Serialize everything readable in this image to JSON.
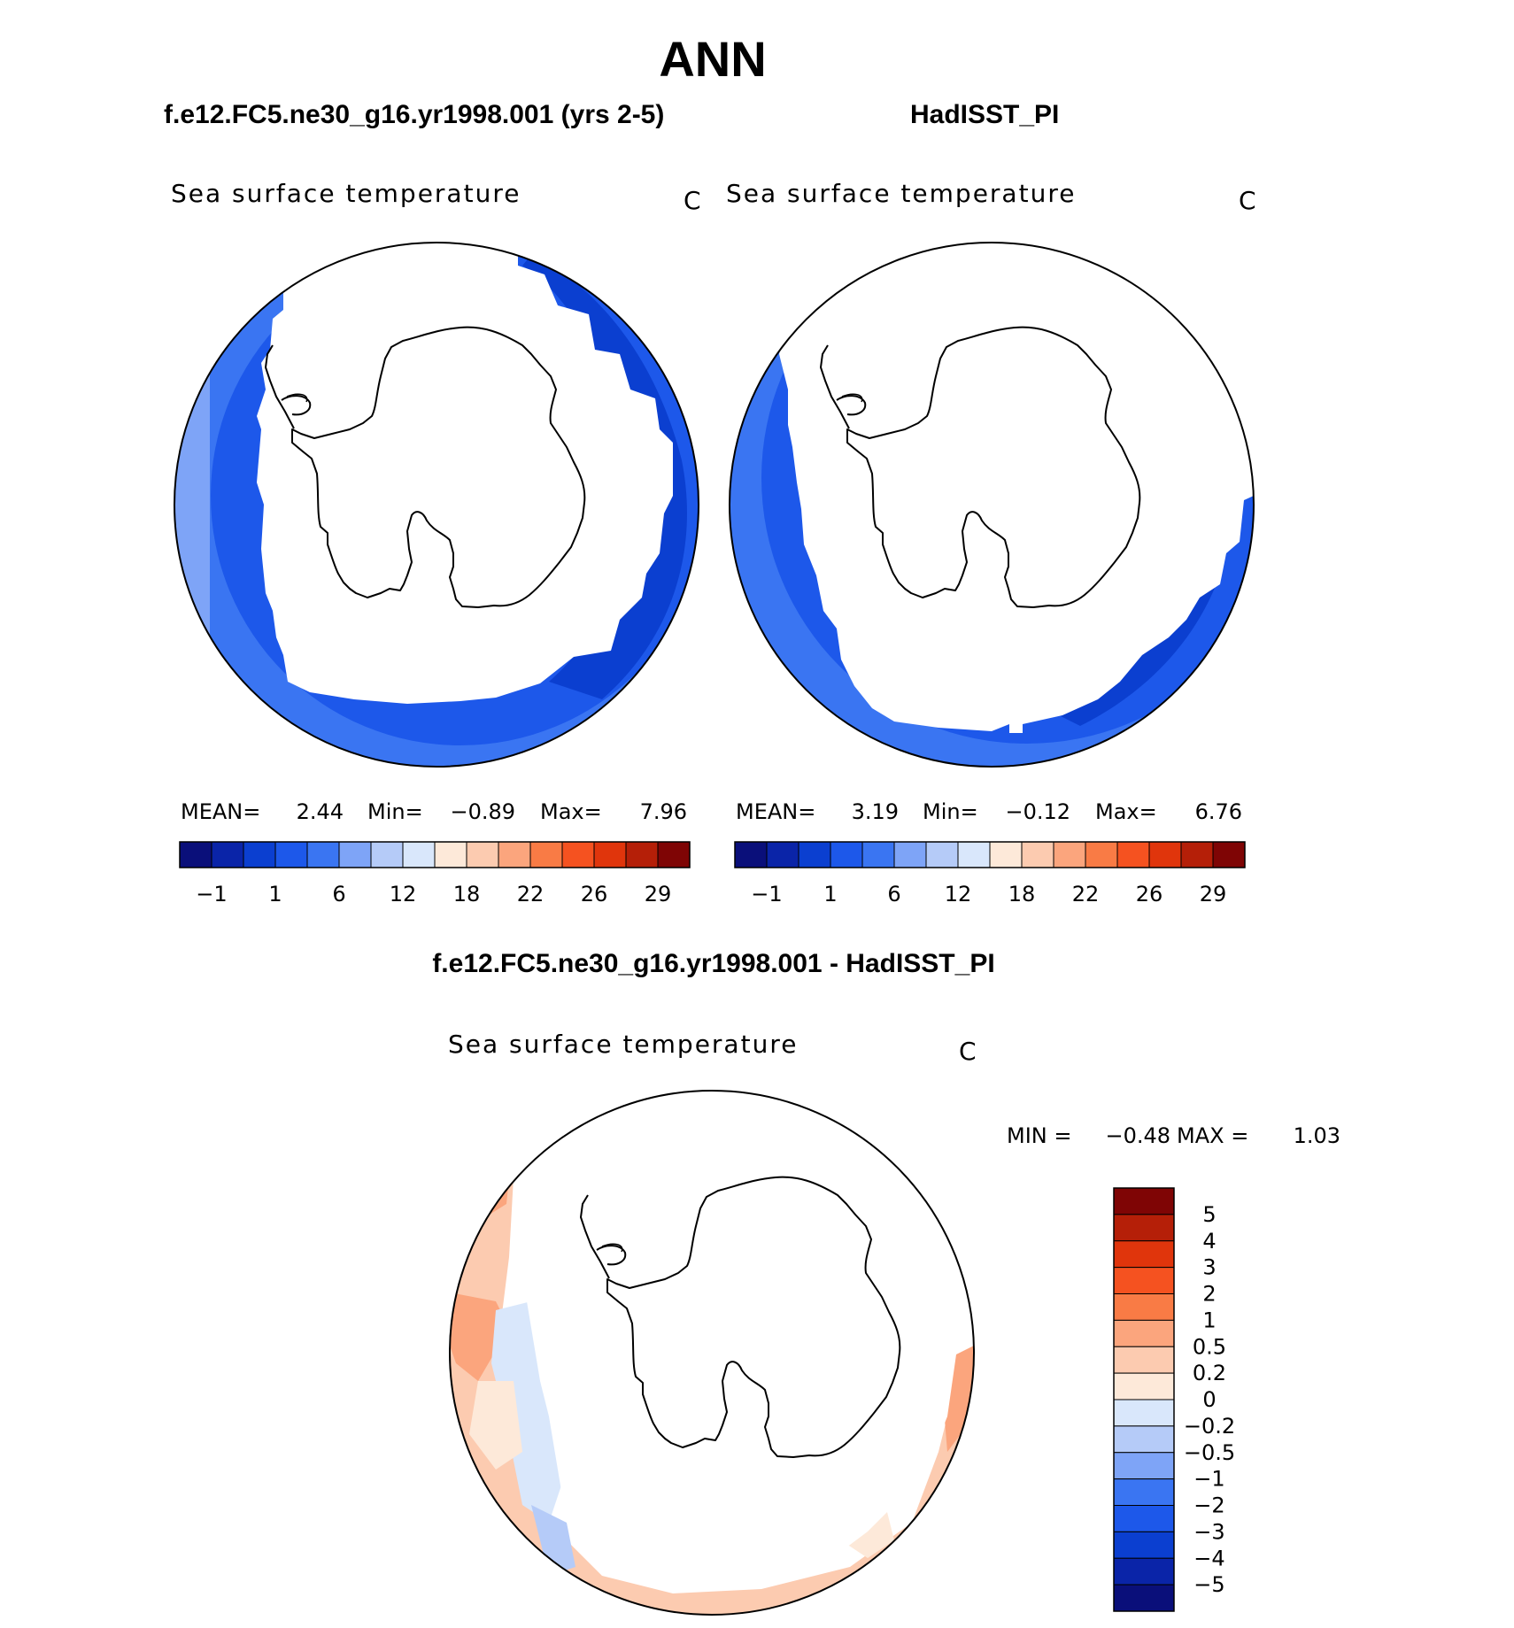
{
  "figure": {
    "title": "ANN",
    "difference_title": "f.e12.FC5.ne30_g16.yr1998.001 - HadISST_PI"
  },
  "chart_data": [
    {
      "type": "heatmap",
      "projection": "south-polar-stereographic",
      "header": "f.e12.FC5.ne30_g16.yr1998.001 (yrs 2-5)",
      "title": "Sea surface temperature",
      "units": "C",
      "stats": {
        "mean_label": "MEAN=",
        "mean": "2.44",
        "min_label": "Min=",
        "min": "−0.89",
        "max_label": "Max=",
        "max": "7.96"
      },
      "colorbar": {
        "orientation": "horizontal",
        "colors": [
          "#0a0f7a",
          "#0a24a8",
          "#0b3fd0",
          "#1d58ea",
          "#3a75f2",
          "#7ea4f7",
          "#b5cbf8",
          "#d9e7fb",
          "#fde9d9",
          "#fccbb0",
          "#fba57d",
          "#f97b45",
          "#f55220",
          "#e0350c",
          "#b51f08",
          "#7f0505"
        ],
        "tick_labels": [
          "−1",
          "1",
          "6",
          "12",
          "18",
          "22",
          "26",
          "29"
        ]
      },
      "zones": [
        {
          "name": "sea ice (masked)",
          "color": "#ffffff"
        },
        {
          "name": "-1 to 1",
          "color": "#0b3fd0"
        },
        {
          "name": "1 to 3",
          "color": "#1d58ea"
        },
        {
          "name": "3 to 6",
          "color": "#3a75f2"
        },
        {
          "name": "6 to 9",
          "color": "#7ea4f7"
        }
      ]
    },
    {
      "type": "heatmap",
      "projection": "south-polar-stereographic",
      "header": "HadISST_PI",
      "title": "Sea surface temperature",
      "units": "C",
      "stats": {
        "mean_label": "MEAN=",
        "mean": "3.19",
        "min_label": "Min=",
        "min": "−0.12",
        "max_label": "Max=",
        "max": "6.76"
      },
      "colorbar": {
        "orientation": "horizontal",
        "colors": [
          "#0a0f7a",
          "#0a24a8",
          "#0b3fd0",
          "#1d58ea",
          "#3a75f2",
          "#7ea4f7",
          "#b5cbf8",
          "#d9e7fb",
          "#fde9d9",
          "#fccbb0",
          "#fba57d",
          "#f97b45",
          "#f55220",
          "#e0350c",
          "#b51f08",
          "#7f0505"
        ],
        "tick_labels": [
          "−1",
          "1",
          "6",
          "12",
          "18",
          "22",
          "26",
          "29"
        ]
      },
      "zones": [
        {
          "name": "sea ice (masked)",
          "color": "#ffffff"
        },
        {
          "name": "-1 to 1",
          "color": "#0b3fd0"
        },
        {
          "name": "1 to 3",
          "color": "#1d58ea"
        },
        {
          "name": "3 to 6",
          "color": "#3a75f2"
        }
      ]
    },
    {
      "type": "heatmap",
      "projection": "south-polar-stereographic",
      "title": "Sea surface temperature",
      "units": "C",
      "stats": {
        "min_label": "MIN =",
        "min": "−0.48",
        "max_label": "MAX =",
        "max": "1.03"
      },
      "colorbar": {
        "orientation": "vertical",
        "colors": [
          "#7f0505",
          "#b51f08",
          "#e0350c",
          "#f55220",
          "#f97b45",
          "#fba57d",
          "#fccbb0",
          "#fde9d9",
          "#d9e7fb",
          "#b5cbf8",
          "#7ea4f7",
          "#3a75f2",
          "#1d58ea",
          "#0b3fd0",
          "#0a24a8",
          "#0a0f7a"
        ],
        "tick_labels": [
          "5",
          "4",
          "3",
          "2",
          "1",
          "0.5",
          "0.2",
          "0",
          "−0.2",
          "−0.5",
          "−1",
          "−2",
          "−3",
          "−4",
          "−5"
        ]
      },
      "zones": [
        {
          "name": "0.5 to 1",
          "color": "#fba57d"
        },
        {
          "name": "0.2 to 0.5",
          "color": "#fccbb0"
        },
        {
          "name": "0 to 0.2",
          "color": "#fde9d9"
        },
        {
          "name": "-0.2 to 0",
          "color": "#d9e7fb"
        },
        {
          "name": "-0.5 to -0.2",
          "color": "#b5cbf8"
        }
      ]
    }
  ]
}
